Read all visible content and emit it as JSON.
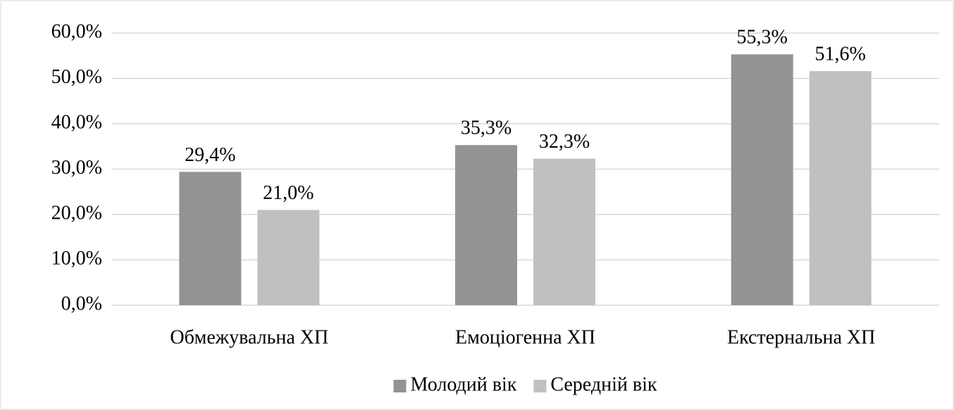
{
  "chart_data": {
    "type": "bar",
    "categories": [
      "Обмежувальна ХП",
      "Емоціогенна ХП",
      "Екстернальна ХП"
    ],
    "series": [
      {
        "name": "Молодий вік",
        "color": "#939393",
        "values": [
          29.4,
          35.3,
          55.3
        ],
        "value_labels": [
          "29,4%",
          "35,3%",
          "55,3%"
        ]
      },
      {
        "name": "Середній вік",
        "color": "#c0c0c0",
        "values": [
          21.0,
          32.3,
          51.6
        ],
        "value_labels": [
          "21,0%",
          "32,3%",
          "51,6%"
        ]
      }
    ],
    "ylim": [
      0,
      60
    ],
    "yticks": [
      {
        "value": 0,
        "label": "0,0%"
      },
      {
        "value": 10,
        "label": "10,0%"
      },
      {
        "value": 20,
        "label": "20,0%"
      },
      {
        "value": 30,
        "label": "30,0%"
      },
      {
        "value": 40,
        "label": "40,0%"
      },
      {
        "value": 50,
        "label": "50,0%"
      },
      {
        "value": 60,
        "label": "60,0%"
      }
    ],
    "grid": true,
    "legend": "bottom"
  }
}
